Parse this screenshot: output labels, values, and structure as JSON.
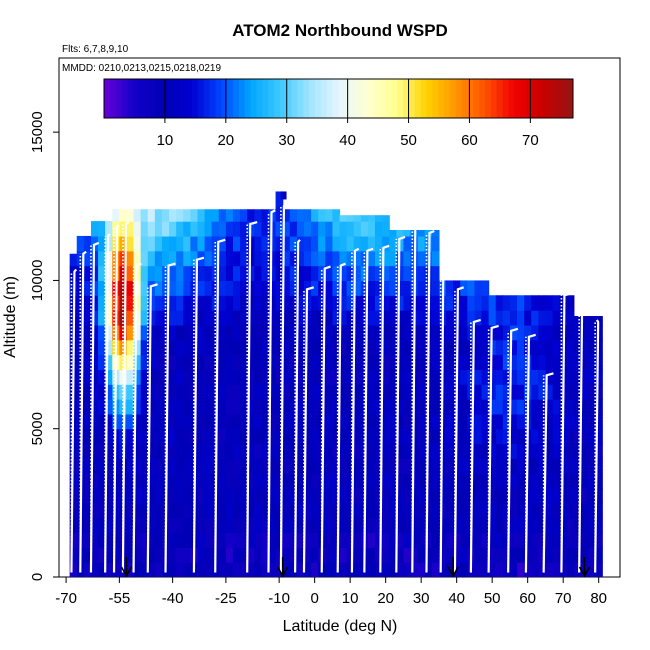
{
  "chart_data": {
    "type": "heatmap",
    "title": "ATOM2 Northbound WSPD",
    "flights_label": "Flts: 6,7,8,9,10",
    "dates_label": "MMDD: 0210,0213,0215,0218,0219",
    "xlabel": "Latitude (deg N)",
    "ylabel": "Altitude (m)",
    "xlim": [
      -72,
      86
    ],
    "ylim": [
      0,
      17500
    ],
    "x_ticks": [
      -70,
      -55,
      -40,
      -25,
      -10,
      0,
      10,
      20,
      30,
      40,
      50,
      60,
      70,
      80
    ],
    "y_ticks": [
      0,
      5000,
      10000,
      15000
    ],
    "colorbar": {
      "range": [
        0,
        77
      ],
      "ticks": [
        10,
        20,
        30,
        40,
        50,
        60,
        70
      ],
      "colors": [
        "#6a00d8",
        "#1400c8",
        "#0000b4",
        "#0000d2",
        "#0046ff",
        "#00a5ff",
        "#3cc8ff",
        "#a0e4ff",
        "#e6f5ff",
        "#ffffd2",
        "#ffff8c",
        "#ffd200",
        "#ff9600",
        "#ff5000",
        "#f00000",
        "#c80000",
        "#961414"
      ]
    },
    "markers": {
      "label": "profile start markers",
      "x": [
        -53,
        -9,
        39,
        76
      ]
    },
    "flight_track": {
      "color": "white",
      "profiles": [
        {
          "lat": -68.5,
          "top": 10300
        },
        {
          "lat": -66,
          "top": 10900
        },
        {
          "lat": -63,
          "top": 11200
        },
        {
          "lat": -59,
          "top": 11500
        },
        {
          "lat": -56.5,
          "top": 11800
        },
        {
          "lat": -54,
          "top": 11900
        },
        {
          "lat": -51,
          "top": 10500
        },
        {
          "lat": -47,
          "top": 9800
        },
        {
          "lat": -42,
          "top": 10500
        },
        {
          "lat": -34,
          "top": 10700
        },
        {
          "lat": -28,
          "top": 11300
        },
        {
          "lat": -19,
          "top": 11900
        },
        {
          "lat": -13,
          "top": 12300
        },
        {
          "lat": -9.5,
          "top": 12500
        },
        {
          "lat": -5.5,
          "top": 11300
        },
        {
          "lat": -3,
          "top": 9700
        },
        {
          "lat": 2,
          "top": 10400
        },
        {
          "lat": 6.5,
          "top": 10500
        },
        {
          "lat": 10.5,
          "top": 11000
        },
        {
          "lat": 14,
          "top": 11000
        },
        {
          "lat": 18.5,
          "top": 11100
        },
        {
          "lat": 23,
          "top": 11400
        },
        {
          "lat": 27.5,
          "top": 11800
        },
        {
          "lat": 31.5,
          "top": 11600
        },
        {
          "lat": 35.5,
          "top": 11800
        },
        {
          "lat": 39.5,
          "top": 9700
        },
        {
          "lat": 44,
          "top": 8600
        },
        {
          "lat": 49,
          "top": 8400
        },
        {
          "lat": 54.5,
          "top": 8300
        },
        {
          "lat": 59.5,
          "top": 8100
        },
        {
          "lat": 64.5,
          "top": 6800
        },
        {
          "lat": 69.5,
          "top": 9500
        },
        {
          "lat": 74.5,
          "top": 9300
        },
        {
          "lat": 79,
          "top": 8600
        }
      ]
    }
  }
}
